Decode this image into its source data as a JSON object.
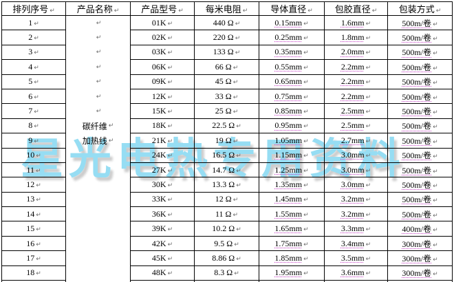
{
  "watermark": {
    "text": "星光电热专用资料"
  },
  "marks": {
    "paragraph": "↵"
  },
  "colors": {
    "border": "#000000",
    "underline_dotted": "#c94fc9",
    "watermark": "#8edbf2",
    "watermark_shadow": "#c8c8c8",
    "pilcrow": "#6a6a6a"
  },
  "table": {
    "headers": [
      {
        "key": "serial",
        "label": "排列序号"
      },
      {
        "key": "product-name",
        "label": "产品名称"
      },
      {
        "key": "model",
        "label": "产品型号"
      },
      {
        "key": "resistance-per-meter",
        "label": "每米电阻"
      },
      {
        "key": "conductor-diameter",
        "label": "导体直径"
      },
      {
        "key": "coated-diameter",
        "label": "包胶直径"
      },
      {
        "key": "packaging",
        "label": "包装方式"
      }
    ],
    "product_name": {
      "lines": [
        "碳纤维",
        "加热线"
      ],
      "empty_paragraphs_above": 7
    },
    "rows": [
      {
        "no": "1",
        "model": "01K",
        "resistance": "440 Ω",
        "conductor": "0.15mm",
        "coated": "1.6mm",
        "packaging": "500m/卷"
      },
      {
        "no": "2",
        "model": "02K",
        "resistance": "220 Ω",
        "conductor": "0.25mm",
        "coated": "1.8mm",
        "packaging": "500m/卷"
      },
      {
        "no": "3",
        "model": "03K",
        "resistance": "133 Ω",
        "conductor": "0.35mm",
        "coated": "2.0mm",
        "packaging": "500m/卷"
      },
      {
        "no": "4",
        "model": "06K",
        "resistance": "66 Ω",
        "conductor": "0.55mm",
        "coated": "2.2mm",
        "packaging": "500m/卷"
      },
      {
        "no": "5",
        "model": "09K",
        "resistance": "45 Ω",
        "conductor": "0.65mm",
        "coated": "2.2mm",
        "packaging": "500m/卷"
      },
      {
        "no": "6",
        "model": "12K",
        "resistance": "33 Ω",
        "conductor": "0.75mm",
        "coated": "2.2mm",
        "packaging": "500m/卷"
      },
      {
        "no": "7",
        "model": "15K",
        "resistance": "25 Ω",
        "conductor": "0.85mm",
        "coated": "2.5mm",
        "packaging": "500m/卷"
      },
      {
        "no": "8",
        "model": "18K",
        "resistance": "22.5 Ω",
        "conductor": "0.95mm",
        "coated": "2.5mm",
        "packaging": "500m/卷"
      },
      {
        "no": "9",
        "model": "21K",
        "resistance": "19 Ω",
        "conductor": "1.05mm",
        "coated": "2.7mm",
        "packaging": "500m/卷"
      },
      {
        "no": "10",
        "model": "24K",
        "resistance": "16.5 Ω",
        "conductor": "1.15mm",
        "coated": "3.0mm",
        "packaging": "500m/卷"
      },
      {
        "no": "11",
        "model": "27K",
        "resistance": "14.7 Ω",
        "conductor": "1.25mm",
        "coated": "3.0mm",
        "packaging": "500m/卷"
      },
      {
        "no": "12",
        "model": "30K",
        "resistance": "13.3 Ω",
        "conductor": "1.35mm",
        "coated": "3.0mm",
        "packaging": "500m/卷"
      },
      {
        "no": "13",
        "model": "33K",
        "resistance": "12 Ω",
        "conductor": "1.45mm",
        "coated": "3.2mm",
        "packaging": "500m/卷"
      },
      {
        "no": "14",
        "model": "36K",
        "resistance": "11 Ω",
        "conductor": "1.55mm",
        "coated": "3.2mm",
        "packaging": "500m/卷"
      },
      {
        "no": "15",
        "model": "39K",
        "resistance": "10.2 Ω",
        "conductor": "1.65mm",
        "coated": "3.3mm",
        "packaging": "400m/卷"
      },
      {
        "no": "16",
        "model": "42K",
        "resistance": "9.5 Ω",
        "conductor": "1.75mm",
        "coated": "3.4mm",
        "packaging": "300m/卷"
      },
      {
        "no": "17",
        "model": "45K",
        "resistance": "8.86 Ω",
        "conductor": "1.85mm",
        "coated": "3.5mm",
        "packaging": "300m/卷"
      },
      {
        "no": "18",
        "model": "48K",
        "resistance": "8.3 Ω",
        "conductor": "1.95mm",
        "coated": "3.6mm",
        "packaging": "300m/卷"
      }
    ]
  }
}
